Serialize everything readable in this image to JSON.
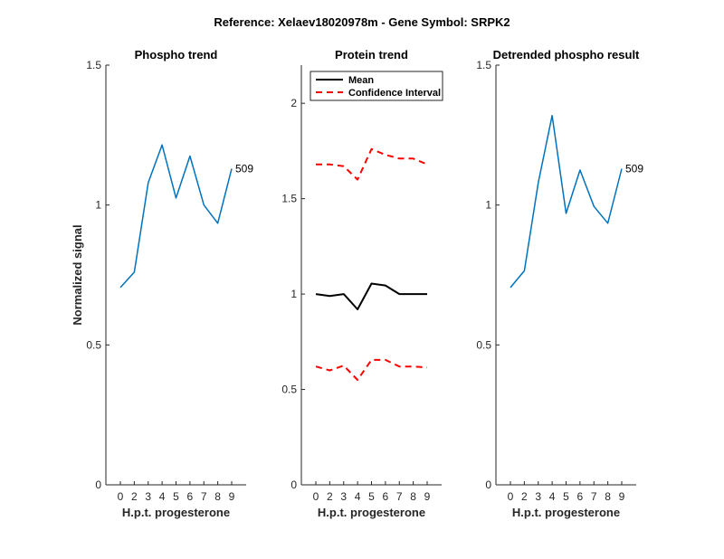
{
  "figure": {
    "suptitle": "Reference:  Xelaev18020978m - Gene Symbol:  SRPK2",
    "colors": {
      "blue": "#0072BD",
      "black": "#000000",
      "red": "#FF0000"
    }
  },
  "chart_data": [
    {
      "type": "line",
      "title": "Phospho trend",
      "xlabel": "H.p.t. progesterone",
      "ylabel": "Normalized signal",
      "categories": [
        "0",
        "2",
        "3",
        "4",
        "5",
        "6",
        "7",
        "8",
        "9"
      ],
      "ylim": [
        0,
        1.5
      ],
      "yticks": [
        0,
        0.5,
        1,
        1.5
      ],
      "ytick_labels": [
        "0",
        "0.5",
        "1",
        "1.5"
      ],
      "series": [
        {
          "values": [
            0.705,
            0.76,
            1.08,
            1.215,
            1.025,
            1.175,
            1.0,
            0.935,
            1.13
          ],
          "color": "#0072BD",
          "style": "solid"
        }
      ],
      "annotation": {
        "text": "509",
        "at_index": 8
      }
    },
    {
      "type": "line",
      "title": "Protein trend",
      "xlabel": "H.p.t. progesterone",
      "ylabel": "",
      "categories": [
        "0",
        "2",
        "3",
        "4",
        "5",
        "6",
        "7",
        "8",
        "9"
      ],
      "ylim": [
        0,
        2.2
      ],
      "yticks": [
        0,
        0.5,
        1,
        1.5,
        2
      ],
      "ytick_labels": [
        "0",
        "0.5",
        "1",
        "1.5",
        "2"
      ],
      "legend": {
        "placement": "top-left"
      },
      "series": [
        {
          "name": "Mean",
          "values": [
            1.0,
            0.99,
            1.0,
            0.92,
            1.055,
            1.045,
            1.0,
            1.0,
            1.0
          ],
          "color": "#000000",
          "style": "solid"
        },
        {
          "name": "Confidence Interval",
          "values": [
            1.68,
            1.68,
            1.67,
            1.6,
            1.76,
            1.73,
            1.71,
            1.71,
            1.68
          ],
          "color": "#FF0000",
          "style": "dashed"
        },
        {
          "values": [
            0.62,
            0.6,
            0.625,
            0.55,
            0.655,
            0.655,
            0.62,
            0.62,
            0.615
          ],
          "color": "#FF0000",
          "style": "dashed"
        }
      ]
    },
    {
      "type": "line",
      "title": "Detrended phospho result",
      "xlabel": "H.p.t. progesterone",
      "ylabel": "",
      "categories": [
        "0",
        "2",
        "3",
        "4",
        "5",
        "6",
        "7",
        "8",
        "9"
      ],
      "ylim": [
        0,
        1.5
      ],
      "yticks": [
        0,
        0.5,
        1,
        1.5
      ],
      "ytick_labels": [
        "0",
        "0.5",
        "1",
        "1.5"
      ],
      "series": [
        {
          "values": [
            0.705,
            0.765,
            1.08,
            1.32,
            0.97,
            1.125,
            0.995,
            0.935,
            1.13
          ],
          "color": "#0072BD",
          "style": "solid"
        }
      ],
      "annotation": {
        "text": "509",
        "at_index": 8
      }
    }
  ]
}
